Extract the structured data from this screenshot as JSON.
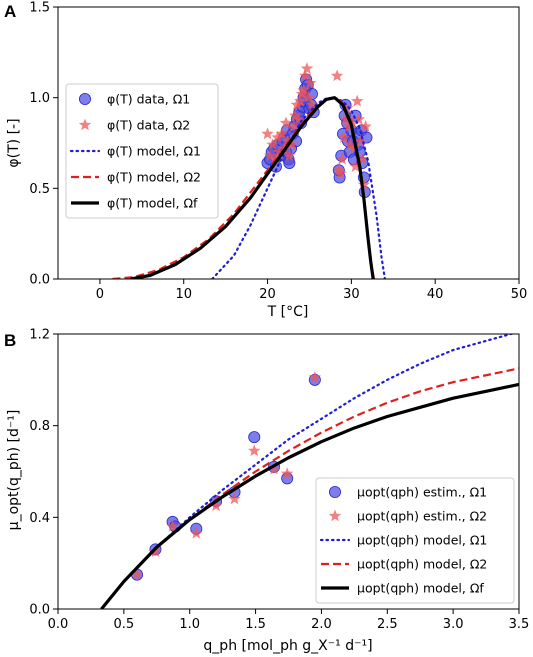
{
  "figure": {
    "panel_a_label": "A",
    "panel_b_label": "B"
  },
  "colors": {
    "model_omega1": "#1f1fd6",
    "model_omega2": "#e02020",
    "model_omegaf": "#000000",
    "data_omega1": "#4c4ce0",
    "data_omega2": "#f05555"
  },
  "chart_data": [
    {
      "type": "scatter",
      "panel": "A",
      "title": "",
      "xlabel": "T [°C]",
      "ylabel": "φ(T) [-]",
      "xlim": [
        -5,
        50
      ],
      "ylim": [
        0,
        1.5
      ],
      "xticks": [
        0,
        10,
        20,
        30,
        40,
        50
      ],
      "yticks": [
        0.0,
        0.5,
        1.0,
        1.5
      ],
      "grid": false,
      "legend_position": "left",
      "series": [
        {
          "name": "φ(T) data, Ω1",
          "marker": "circle",
          "points": [
            [
              20.0,
              0.64
            ],
            [
              20.3,
              0.66
            ],
            [
              20.5,
              0.7
            ],
            [
              20.8,
              0.72
            ],
            [
              21.0,
              0.62
            ],
            [
              21.2,
              0.74
            ],
            [
              21.5,
              0.68
            ],
            [
              21.8,
              0.76
            ],
            [
              22.0,
              0.78
            ],
            [
              22.2,
              0.7
            ],
            [
              22.3,
              0.82
            ],
            [
              22.5,
              0.66
            ],
            [
              22.6,
              0.64
            ],
            [
              22.8,
              0.72
            ],
            [
              23.0,
              0.8
            ],
            [
              23.2,
              0.84
            ],
            [
              23.4,
              0.76
            ],
            [
              23.5,
              0.88
            ],
            [
              23.7,
              0.9
            ],
            [
              23.8,
              0.92
            ],
            [
              24.0,
              0.86
            ],
            [
              24.2,
              0.95
            ],
            [
              24.3,
              1.0
            ],
            [
              24.4,
              0.98
            ],
            [
              24.5,
              1.05
            ],
            [
              24.6,
              1.1
            ],
            [
              24.8,
              1.07
            ],
            [
              25.0,
              0.94
            ],
            [
              25.2,
              0.96
            ],
            [
              25.3,
              1.02
            ],
            [
              25.5,
              0.92
            ],
            [
              28.5,
              0.6
            ],
            [
              28.6,
              0.56
            ],
            [
              28.8,
              0.68
            ],
            [
              29.0,
              0.8
            ],
            [
              29.2,
              0.9
            ],
            [
              29.3,
              0.96
            ],
            [
              29.5,
              0.86
            ],
            [
              29.6,
              0.76
            ],
            [
              29.8,
              0.7
            ],
            [
              30.0,
              0.82
            ],
            [
              30.2,
              0.76
            ],
            [
              30.3,
              0.66
            ],
            [
              30.5,
              0.9
            ],
            [
              30.7,
              0.8
            ],
            [
              30.8,
              0.74
            ],
            [
              31.0,
              0.7
            ],
            [
              31.2,
              0.82
            ],
            [
              31.3,
              0.64
            ],
            [
              31.5,
              0.56
            ],
            [
              31.6,
              0.48
            ],
            [
              31.8,
              0.78
            ]
          ]
        },
        {
          "name": "φ(T) data, Ω2",
          "marker": "star",
          "points": [
            [
              20.0,
              0.8
            ],
            [
              20.3,
              0.68
            ],
            [
              20.6,
              0.74
            ],
            [
              20.9,
              0.66
            ],
            [
              21.2,
              0.78
            ],
            [
              21.4,
              0.7
            ],
            [
              21.7,
              0.8
            ],
            [
              22.0,
              0.72
            ],
            [
              22.2,
              0.86
            ],
            [
              22.4,
              0.76
            ],
            [
              22.6,
              0.68
            ],
            [
              22.9,
              0.74
            ],
            [
              23.1,
              0.84
            ],
            [
              23.3,
              0.9
            ],
            [
              23.5,
              0.96
            ],
            [
              23.7,
              0.88
            ],
            [
              23.9,
              0.98
            ],
            [
              24.1,
              1.02
            ],
            [
              24.3,
              1.04
            ],
            [
              24.5,
              1.12
            ],
            [
              24.7,
              1.16
            ],
            [
              24.9,
              1.0
            ],
            [
              25.1,
              1.08
            ],
            [
              25.3,
              0.96
            ],
            [
              28.3,
              1.12
            ],
            [
              28.5,
              0.6
            ],
            [
              28.7,
              0.58
            ],
            [
              28.9,
              0.66
            ],
            [
              29.1,
              0.78
            ],
            [
              29.3,
              0.88
            ],
            [
              29.5,
              0.94
            ],
            [
              29.7,
              0.84
            ],
            [
              29.9,
              0.74
            ],
            [
              30.1,
              0.86
            ],
            [
              30.3,
              0.72
            ],
            [
              30.5,
              0.62
            ],
            [
              30.7,
              0.98
            ],
            [
              30.9,
              0.88
            ],
            [
              31.1,
              0.76
            ],
            [
              31.3,
              0.66
            ],
            [
              31.5,
              0.52
            ],
            [
              31.7,
              0.84
            ]
          ]
        },
        {
          "name": "φ(T) model, Ω1",
          "line": "dotted",
          "x": [
            13.4,
            16,
            18,
            20,
            22,
            24,
            26,
            27,
            28,
            29,
            30,
            31,
            32,
            33,
            33.6,
            34
          ],
          "y": [
            0,
            0.13,
            0.3,
            0.5,
            0.7,
            0.87,
            0.97,
            0.995,
            1.0,
            0.98,
            0.93,
            0.83,
            0.65,
            0.35,
            0.12,
            0
          ]
        },
        {
          "name": "φ(T) model, Ω2",
          "line": "dashed",
          "x": [
            1.5,
            4,
            7,
            10,
            13,
            16,
            19,
            21,
            23,
            25,
            27,
            28,
            29,
            30,
            31,
            31.5,
            32,
            32.3,
            32.7
          ],
          "y": [
            0,
            0.01,
            0.05,
            0.12,
            0.22,
            0.36,
            0.54,
            0.66,
            0.79,
            0.91,
            0.99,
            1.0,
            0.97,
            0.86,
            0.62,
            0.44,
            0.22,
            0.1,
            0
          ]
        },
        {
          "name": "φ(T) model, Ωf",
          "line": "solid",
          "x": [
            3.7,
            6,
            9,
            12,
            15,
            18,
            20,
            22,
            24,
            26,
            27,
            28,
            29,
            30,
            31,
            31.5,
            32,
            32.3,
            32.6
          ],
          "y": [
            0,
            0.02,
            0.08,
            0.17,
            0.29,
            0.45,
            0.58,
            0.71,
            0.84,
            0.95,
            0.99,
            1.0,
            0.96,
            0.85,
            0.62,
            0.44,
            0.22,
            0.1,
            0
          ]
        }
      ]
    },
    {
      "type": "scatter",
      "panel": "B",
      "title": "",
      "xlabel": "q_ph [mol_ph g_X⁻¹ d⁻¹]",
      "ylabel": "μ_opt(q_ph) [d⁻¹]",
      "xlim": [
        0.0,
        3.5
      ],
      "ylim": [
        0.0,
        1.2
      ],
      "xticks": [
        0.0,
        0.5,
        1.0,
        1.5,
        2.0,
        2.5,
        3.0,
        3.5
      ],
      "yticks": [
        0.0,
        0.4,
        0.8,
        1.2
      ],
      "grid": false,
      "legend_position": "bottom-right",
      "series": [
        {
          "name": "μopt(qph) estim., Ω1",
          "marker": "circle",
          "points": [
            [
              0.6,
              0.15
            ],
            [
              0.74,
              0.26
            ],
            [
              0.87,
              0.38
            ],
            [
              0.89,
              0.36
            ],
            [
              1.05,
              0.35
            ],
            [
              1.2,
              0.47
            ],
            [
              1.34,
              0.51
            ],
            [
              1.49,
              0.75
            ],
            [
              1.64,
              0.62
            ],
            [
              1.74,
              0.57
            ],
            [
              1.95,
              1.0
            ]
          ]
        },
        {
          "name": "μopt(qph) estim., Ω2",
          "marker": "star",
          "points": [
            [
              0.6,
              0.15
            ],
            [
              0.74,
              0.25
            ],
            [
              0.87,
              0.36
            ],
            [
              1.05,
              0.33
            ],
            [
              1.2,
              0.45
            ],
            [
              1.34,
              0.48
            ],
            [
              1.49,
              0.69
            ],
            [
              1.64,
              0.61
            ],
            [
              1.74,
              0.59
            ],
            [
              1.95,
              1.01
            ]
          ]
        },
        {
          "name": "μopt(qph) model, Ω1",
          "line": "dotted",
          "x": [
            0.33,
            0.5,
            0.75,
            1.0,
            1.25,
            1.5,
            1.75,
            2.0,
            2.25,
            2.5,
            2.75,
            3.0,
            3.25,
            3.5
          ],
          "y": [
            0,
            0.12,
            0.27,
            0.4,
            0.52,
            0.63,
            0.74,
            0.83,
            0.92,
            1.0,
            1.07,
            1.13,
            1.17,
            1.21
          ]
        },
        {
          "name": "μopt(qph) model, Ω2",
          "line": "dashed",
          "x": [
            0.33,
            0.5,
            0.75,
            1.0,
            1.25,
            1.5,
            1.75,
            2.0,
            2.25,
            2.5,
            2.75,
            3.0,
            3.25,
            3.5
          ],
          "y": [
            0,
            0.12,
            0.27,
            0.39,
            0.5,
            0.6,
            0.69,
            0.77,
            0.84,
            0.9,
            0.95,
            0.99,
            1.02,
            1.05
          ]
        },
        {
          "name": "μopt(qph) model, Ωf",
          "line": "solid",
          "x": [
            0.33,
            0.5,
            0.75,
            1.0,
            1.25,
            1.5,
            1.75,
            2.0,
            2.25,
            2.5,
            2.75,
            3.0,
            3.25,
            3.5
          ],
          "y": [
            0,
            0.12,
            0.27,
            0.39,
            0.49,
            0.58,
            0.66,
            0.73,
            0.79,
            0.84,
            0.88,
            0.92,
            0.95,
            0.98
          ]
        }
      ]
    }
  ]
}
